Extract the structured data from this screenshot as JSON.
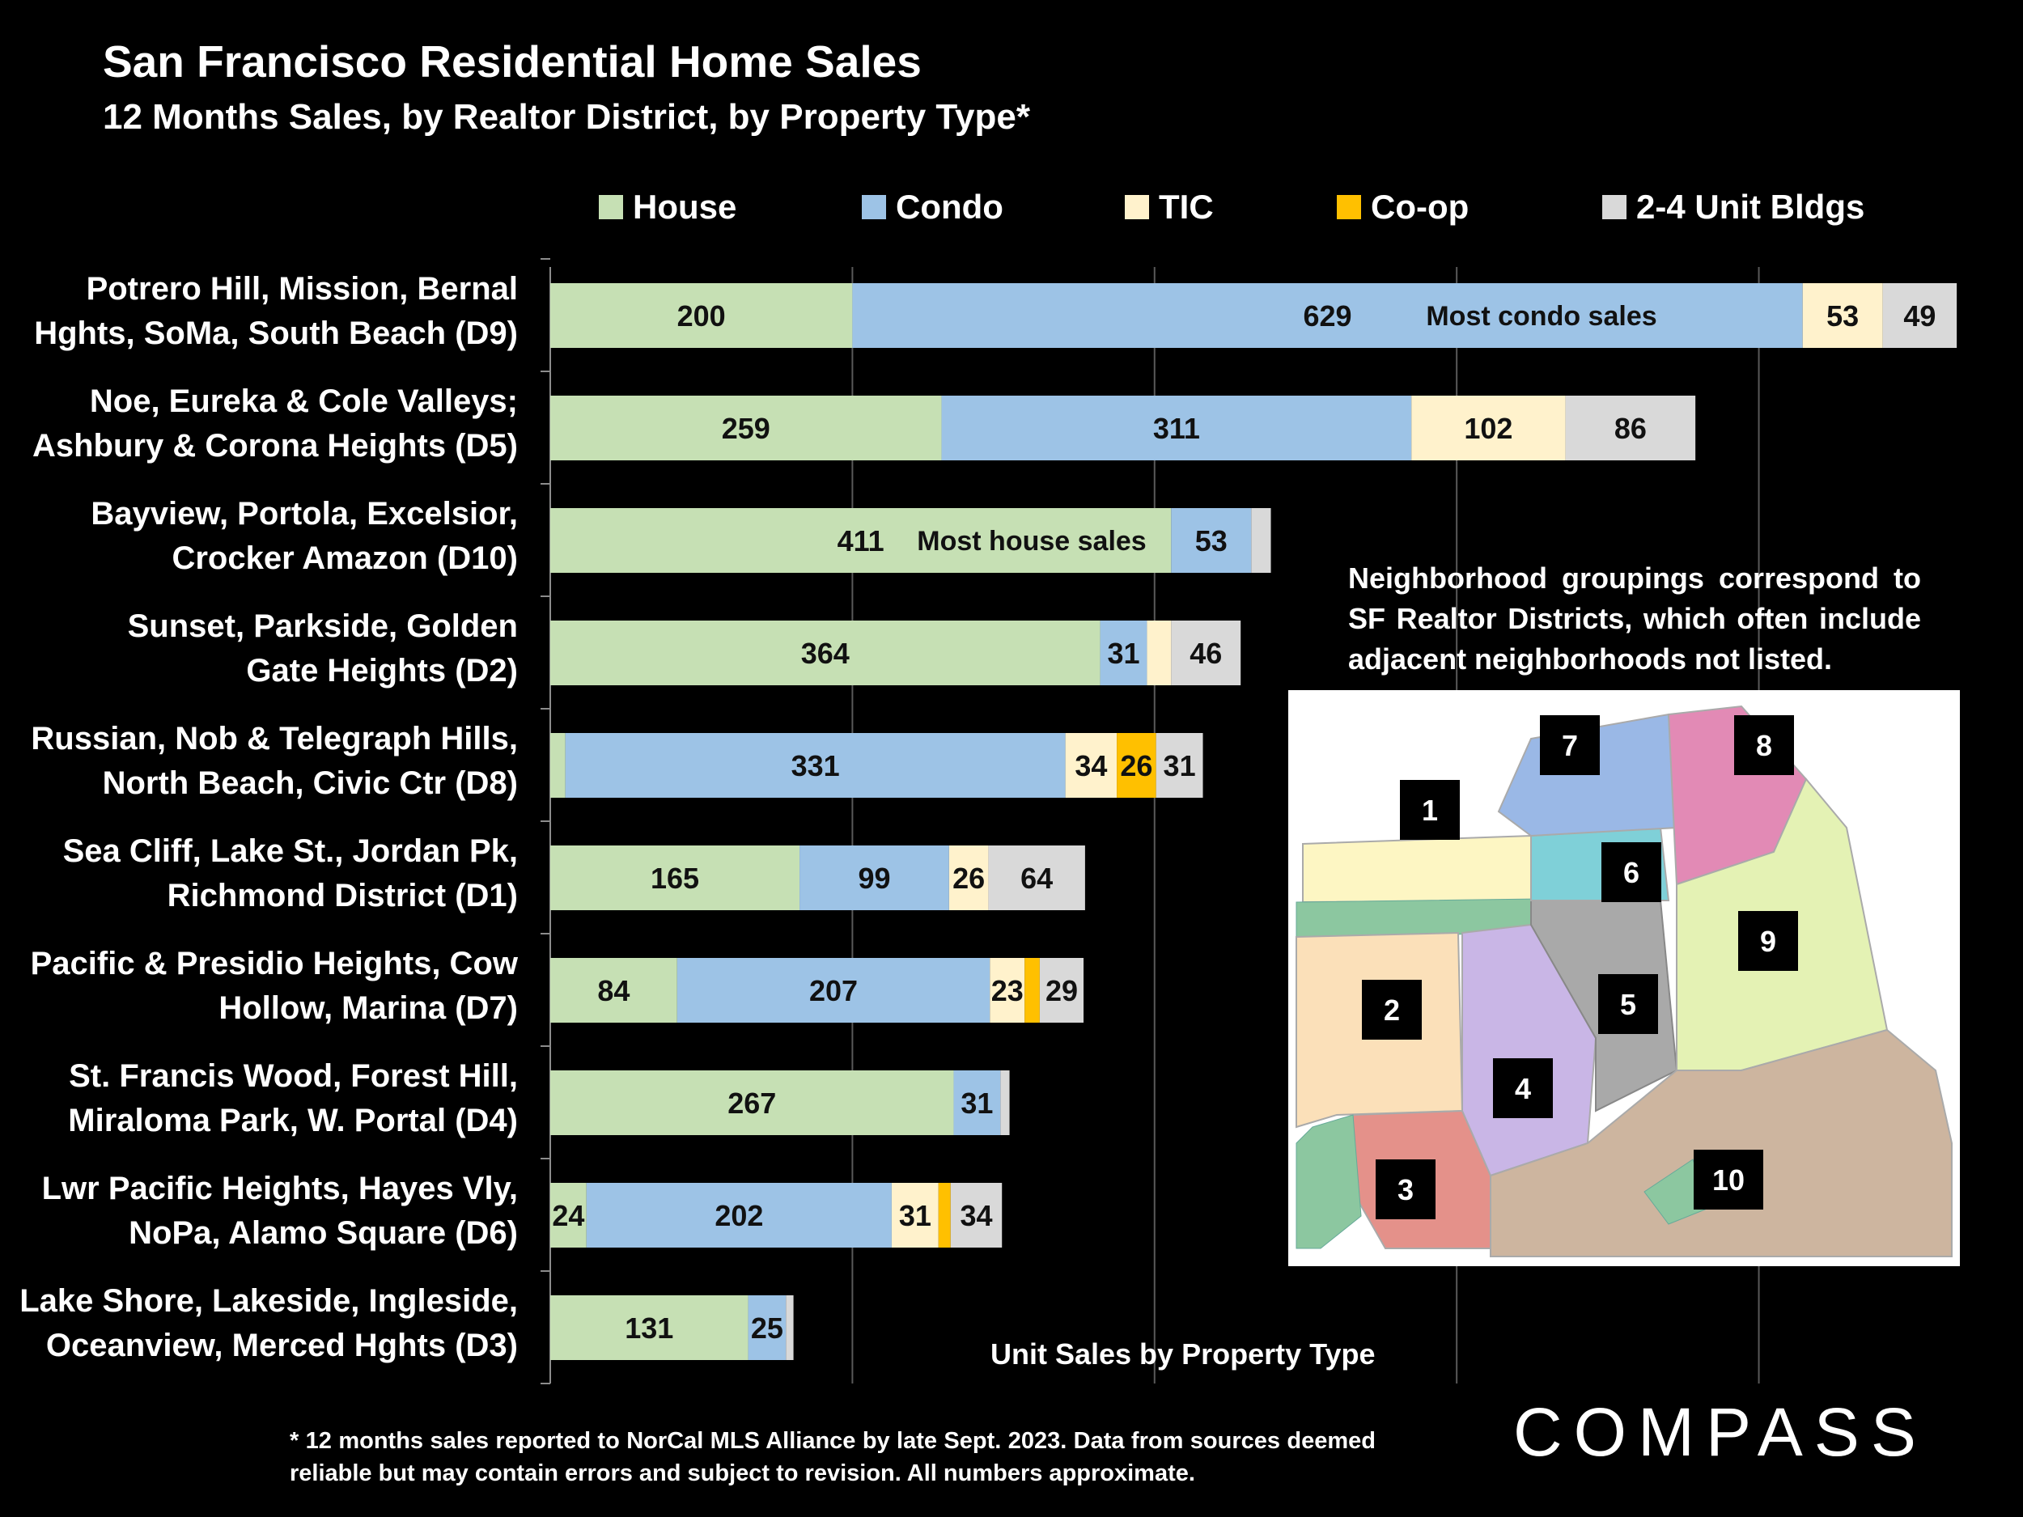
{
  "header": {
    "title": "San Francisco Residential Home Sales",
    "subtitle": "12 Months Sales, by Realtor District, by Property Type*"
  },
  "colors": {
    "House": "#c6e0b4",
    "Condo": "#9dc3e6",
    "TIC": "#fff2cc",
    "Co-op": "#ffc000",
    "2-4 Unit Bldgs": "#d9d9d9",
    "background": "#000000",
    "gridline": "#595959"
  },
  "chart_data": {
    "type": "bar",
    "orientation": "horizontal",
    "stacked": true,
    "categories": [
      [
        "Potrero Hill, Mission, Bernal",
        "Hghts, SoMa, South Beach (D9)"
      ],
      [
        "Noe, Eureka & Cole Valleys;",
        "Ashbury & Corona Heights (D5)"
      ],
      [
        "Bayview, Portola, Excelsior,",
        "Crocker Amazon (D10)"
      ],
      [
        "Sunset, Parkside, Golden",
        "Gate Heights (D2)"
      ],
      [
        "Russian, Nob & Telegraph Hills,",
        "North Beach, Civic Ctr (D8)"
      ],
      [
        "Sea Cliff, Lake St., Jordan Pk,",
        "Richmond District (D1)"
      ],
      [
        "Pacific & Presidio Heights, Cow",
        "Hollow, Marina (D7)"
      ],
      [
        "St. Francis Wood, Forest Hill,",
        "Miraloma Park, W. Portal (D4)"
      ],
      [
        "Lwr Pacific Heights, Hayes Vly,",
        "NoPa, Alamo Square (D6)"
      ],
      [
        "Lake Shore, Lakeside, Ingleside,",
        "Oceanview, Merced Hghts (D3)"
      ]
    ],
    "series": [
      {
        "name": "House",
        "values": [
          200,
          259,
          411,
          364,
          10,
          165,
          84,
          267,
          24,
          131
        ]
      },
      {
        "name": "Condo",
        "values": [
          629,
          311,
          53,
          31,
          331,
          99,
          207,
          31,
          202,
          25
        ]
      },
      {
        "name": "TIC",
        "values": [
          53,
          102,
          0,
          16,
          34,
          26,
          23,
          0,
          31,
          0
        ]
      },
      {
        "name": "Co-op",
        "values": [
          0,
          0,
          0,
          0,
          26,
          0,
          10,
          0,
          8,
          0
        ]
      },
      {
        "name": "2-4 Unit Bldgs",
        "values": [
          49,
          86,
          13,
          46,
          31,
          64,
          29,
          6,
          34,
          5
        ]
      }
    ],
    "data_labels": [
      [
        "200",
        "629",
        "53",
        "",
        "49"
      ],
      [
        "259",
        "311",
        "102",
        "",
        "86"
      ],
      [
        "411",
        "53",
        "",
        "",
        ""
      ],
      [
        "364",
        "31",
        "",
        "",
        "46"
      ],
      [
        "",
        "331",
        "34",
        "26",
        "31"
      ],
      [
        "165",
        "99",
        "26",
        "",
        "64"
      ],
      [
        "84",
        "207",
        "23",
        "",
        "29"
      ],
      [
        "267",
        "31",
        "",
        "",
        ""
      ],
      [
        "24",
        "202",
        "31",
        "",
        "34"
      ],
      [
        "131",
        "25",
        "",
        "",
        ""
      ]
    ],
    "annotations": [
      {
        "text": "Most condo sales",
        "category_index": 0
      },
      {
        "text": "Most house sales",
        "category_index": 2
      }
    ],
    "xlabel": "Unit Sales by Property Type",
    "xlim": [
      0,
      932
    ],
    "gridline_values": [
      0,
      200,
      400,
      600,
      800
    ],
    "grid": true,
    "legend_position": "top"
  },
  "note": "Neighborhood groupings correspond to SF Realtor Districts, which often include adjacent neighborhoods not listed.",
  "map": {
    "district_numbers": [
      "1",
      "2",
      "3",
      "4",
      "5",
      "6",
      "7",
      "8",
      "9",
      "10"
    ]
  },
  "footnote": "* 12 months sales reported to NorCal MLS Alliance by late Sept. 2023. Data from sources deemed reliable but may contain errors and subject to revision. All numbers approximate.",
  "brand": "COMPASS"
}
